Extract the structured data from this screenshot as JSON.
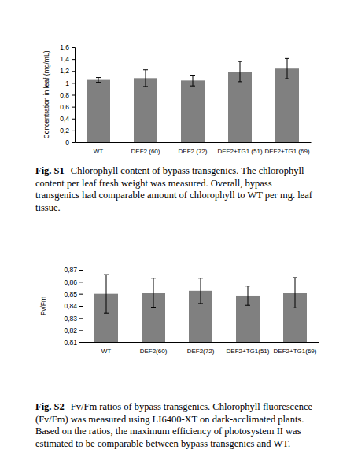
{
  "chart_data": [
    {
      "type": "bar",
      "title": "Fig. S1",
      "caption": "Chlorophyll content of bypass transgenics. The chlorophyll content per leaf fresh weight was measured. Overall, bypass transgenics had comparable amount of chlorophyll to WT per mg. leaf tissue.",
      "y_label": "Concentration in leaf (mg/mL)",
      "categories": [
        "WT",
        "DEF2 (60)",
        "DEF2 (72)",
        "DEF2+TG1 (51)",
        "DEF2+TG1 (69)"
      ],
      "values": [
        1.05,
        1.08,
        1.04,
        1.19,
        1.24
      ],
      "errors": [
        0.04,
        0.14,
        0.09,
        0.17,
        0.17
      ],
      "color": "#808080",
      "ylim": [
        0,
        1.6
      ],
      "yticks": [
        0,
        {
          "value": 0.2,
          "label": "0,2"
        },
        {
          "value": 0.4,
          "label": "0,4"
        },
        {
          "value": 0.6,
          "label": "0,6"
        },
        {
          "value": 0.8,
          "label": "0,8"
        },
        1,
        {
          "value": 1.2,
          "label": "1,2"
        },
        {
          "value": 1.4,
          "label": "1,4"
        },
        {
          "value": 1.6,
          "label": "1,6"
        }
      ],
      "grid": false
    },
    {
      "type": "bar",
      "title": "Fig. S2",
      "caption": "Fv/Fm ratios of bypass transgenics. Chlorophyll fluorescence (Fv/Fm) was measured using LI6400-XT on dark-acclimated plants. Based on the ratios, the maximum efficiency of photosystem II was estimated to be comparable between bypass transgenics and WT.",
      "y_label": "Fv/Fm",
      "categories": [
        "WT",
        "DEF2(60)",
        "DEF2(72)",
        "DEF2+TG1(51)",
        "DEF2+TG1(69)"
      ],
      "values": [
        0.85,
        0.851,
        0.8525,
        0.8485,
        0.851
      ],
      "errors": [
        0.016,
        0.012,
        0.0105,
        0.008,
        0.0125
      ],
      "color": "#808080",
      "ylim": [
        0.81,
        0.87
      ],
      "yticks": [
        {
          "value": 0.81,
          "label": "0,81"
        },
        {
          "value": 0.82,
          "label": "0,82"
        },
        {
          "value": 0.83,
          "label": "0,83"
        },
        {
          "value": 0.84,
          "label": "0,84"
        },
        {
          "value": 0.85,
          "label": "0,85"
        },
        {
          "value": 0.86,
          "label": "0,86"
        },
        {
          "value": 0.87,
          "label": "0,87"
        }
      ],
      "grid": false
    }
  ]
}
